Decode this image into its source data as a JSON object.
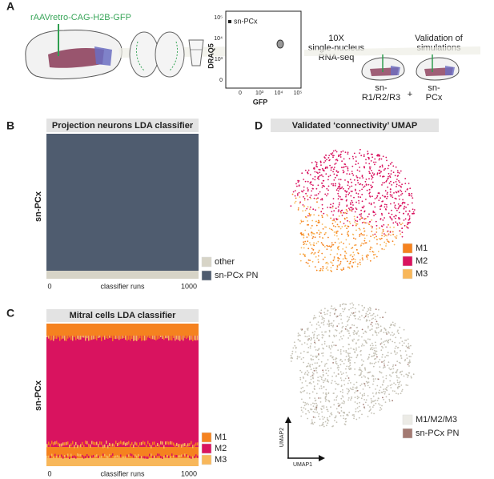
{
  "panel_a": {
    "label": "A",
    "virus": "rAAVretro-CAG-H2B-GFP",
    "facs": {
      "gate": "sn-PCx",
      "y_label": "DRAQ5",
      "x_label": "GFP",
      "yticks": [
        "10⁵",
        "10⁴",
        "10³",
        "0"
      ],
      "xticks": [
        "0",
        "10³",
        "10⁴",
        "10⁵"
      ]
    },
    "step_sequencing": [
      "10X",
      "single-nucleus",
      "RNA-seq"
    ],
    "step_validation": [
      "Validation of",
      "simulations"
    ],
    "group_1": [
      "sn-",
      "R1/R2/R3"
    ],
    "plus": "+",
    "group_2": [
      "sn-",
      "PCx"
    ]
  },
  "panel_b": {
    "label": "B",
    "title": "Projection neurons LDA classifier",
    "y_label": "sn-PCx",
    "x_label": "classifier runs",
    "x_ticks": [
      0,
      1000
    ],
    "legend": [
      {
        "name": "other",
        "color": "#d7d4c7"
      },
      {
        "name": "sn-PCx PN",
        "color": "#4f5c6f"
      }
    ]
  },
  "panel_c": {
    "label": "C",
    "title": "Mitral cells LDA classifier",
    "y_label": "sn-PCx",
    "x_label": "classifier runs",
    "x_ticks": [
      0,
      1000
    ],
    "legend": [
      {
        "name": "M1",
        "color": "#f5821f"
      },
      {
        "name": "M2",
        "color": "#d9135f"
      },
      {
        "name": "M3",
        "color": "#f8b75a"
      }
    ]
  },
  "panel_d": {
    "label": "D",
    "title": "Validated ‘connectivity’ UMAP",
    "legend_top": [
      {
        "name": "M1",
        "color": "#f5821f"
      },
      {
        "name": "M2",
        "color": "#d9135f"
      },
      {
        "name": "M3",
        "color": "#f8b75a"
      }
    ],
    "legend_bottom": [
      {
        "name": "M1/M2/M3",
        "color": "#ecebe6"
      },
      {
        "name": "sn-PCx PN",
        "color": "#a37a72"
      }
    ],
    "x_axis": "UMAP1",
    "y_axis": "UMAP2"
  }
}
